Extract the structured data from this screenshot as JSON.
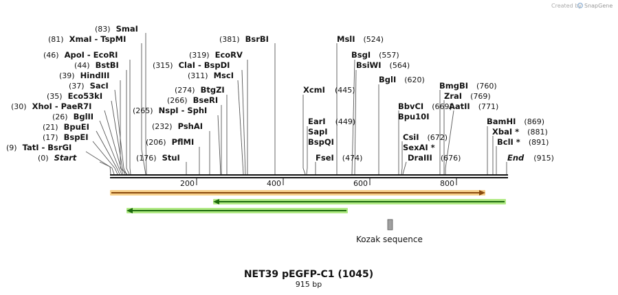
{
  "credit": {
    "prefix": "Created by",
    "brand": "SnapGene"
  },
  "map": {
    "title": "NET39 pEGFP-C1 (1045)",
    "subtitle": "915 bp",
    "length": 915,
    "ticks": [
      "200",
      "400",
      "600",
      "800"
    ],
    "tick_values": [
      200,
      400,
      600,
      800
    ]
  },
  "sites": [
    {
      "name": "SmaI",
      "pos": "(83)",
      "bp": 83
    },
    {
      "name": "XmaI  - TspMI",
      "pos": "(81)",
      "bp": 81
    },
    {
      "name": "ApoI  - EcoRI",
      "pos": "(46)",
      "bp": 46
    },
    {
      "name": "BstBI",
      "pos": "(44)",
      "bp": 44
    },
    {
      "name": "HindIII",
      "pos": "(39)",
      "bp": 39
    },
    {
      "name": "SacI",
      "pos": "(37)",
      "bp": 37
    },
    {
      "name": "Eco53kI",
      "pos": "(35)",
      "bp": 35
    },
    {
      "name": "XhoI  - PaeR7I",
      "pos": "(30)",
      "bp": 30
    },
    {
      "name": "BglII",
      "pos": "(26)",
      "bp": 26
    },
    {
      "name": "BpuEI",
      "pos": "(21)",
      "bp": 21
    },
    {
      "name": "BspEI",
      "pos": "(17)",
      "bp": 17
    },
    {
      "name": "TatI  - BsrGI",
      "pos": "(9)",
      "bp": 9
    },
    {
      "name": "Start",
      "pos": "(0)",
      "bp": 0,
      "italic": true
    },
    {
      "name": "BsrBI",
      "pos": "(381)",
      "bp": 381
    },
    {
      "name": "EcoRV",
      "pos": "(319)",
      "bp": 319
    },
    {
      "name": "ClaI  - BspDI",
      "pos": "(315)",
      "bp": 315
    },
    {
      "name": "MscI",
      "pos": "(311)",
      "bp": 311
    },
    {
      "name": "BtgZI",
      "pos": "(274)",
      "bp": 274
    },
    {
      "name": "BseRI",
      "pos": "(266)",
      "bp": 266
    },
    {
      "name": "NspI  - SphI",
      "pos": "(265)",
      "bp": 265
    },
    {
      "name": "PshAI",
      "pos": "(232)",
      "bp": 232
    },
    {
      "name": "PflMI",
      "pos": "(206)",
      "bp": 206
    },
    {
      "name": "StuI",
      "pos": "(176)",
      "bp": 176
    },
    {
      "name": "MslI",
      "pos": "(524)",
      "bp": 524
    },
    {
      "name": "BsgI",
      "pos": "(557)",
      "bp": 557
    },
    {
      "name": "BsiWI",
      "pos": "(564)",
      "bp": 564
    },
    {
      "name": "BglI",
      "pos": "(620)",
      "bp": 620
    },
    {
      "name": "XcmI",
      "pos": "(445)",
      "bp": 445
    },
    {
      "name": "EarI",
      "pos": "(449)",
      "bp": 449
    },
    {
      "name": "SapI",
      "pos": "",
      "bp": 449
    },
    {
      "name": "BspQI",
      "pos": "",
      "bp": 449
    },
    {
      "name": "FseI",
      "pos": "(474)",
      "bp": 474
    },
    {
      "name": "BmgBI",
      "pos": "(760)",
      "bp": 760
    },
    {
      "name": "ZraI",
      "pos": "(769)",
      "bp": 769
    },
    {
      "name": "BbvCI",
      "pos": "(669)",
      "bp": 669
    },
    {
      "name": "AatII",
      "pos": "(771)",
      "bp": 771
    },
    {
      "name": "Bpu10I",
      "pos": "",
      "bp": 669
    },
    {
      "name": "CsiI",
      "pos": "(672)",
      "bp": 672
    },
    {
      "name": "SexAI *",
      "pos": "",
      "bp": 672
    },
    {
      "name": "DraIII",
      "pos": "(676)",
      "bp": 676
    },
    {
      "name": "BamHI",
      "pos": "(869)",
      "bp": 869
    },
    {
      "name": "XbaI *",
      "pos": "(881)",
      "bp": 881
    },
    {
      "name": "BclI *",
      "pos": "(891)",
      "bp": 891
    },
    {
      "name": "End",
      "pos": "(915)",
      "bp": 915,
      "italic": true
    }
  ],
  "features": {
    "kozak_label": "Kozak sequence"
  },
  "colors": {
    "orange_arrow": "#e8a33a",
    "green_arrow": "#7cd444",
    "kozak_box": "#a0a0a0",
    "backbone": "#111111"
  }
}
